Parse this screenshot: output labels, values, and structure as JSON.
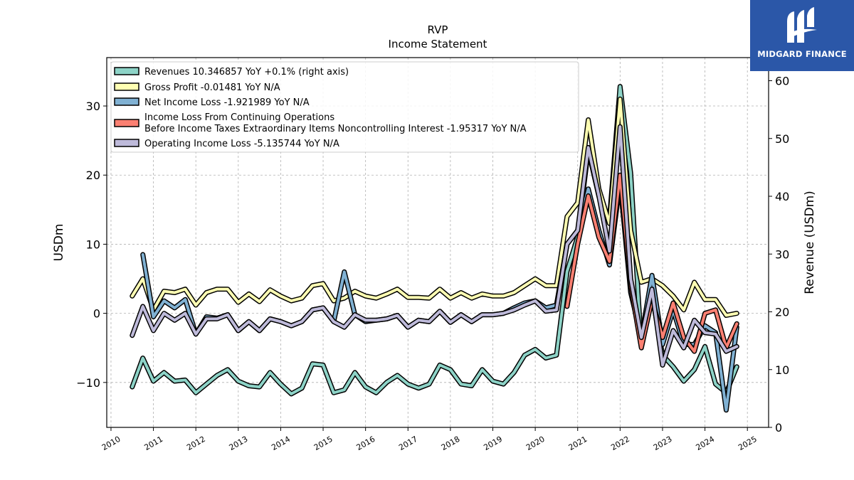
{
  "brand": {
    "name": "MIDGARD FINANCE",
    "color": "#2b57a8",
    "mark_icon": "midgard-logo-icon"
  },
  "chart_data": {
    "type": "line",
    "title": "RVP",
    "subtitle": "Income Statement",
    "ylabel": "USDm",
    "ylabel_right": "Revenue (USDm)",
    "xlim": [
      2009.9,
      2025.5
    ],
    "ylim": [
      -16.5,
      37
    ],
    "ylim_right": [
      0,
      64
    ],
    "x_ticks": [
      2010,
      2011,
      2012,
      2013,
      2014,
      2015,
      2016,
      2017,
      2018,
      2019,
      2020,
      2021,
      2022,
      2023,
      2024,
      2025
    ],
    "x_tick_labels": [
      "2010",
      "2011",
      "2012",
      "2013",
      "2014",
      "2015",
      "2016",
      "2017",
      "2018",
      "2019",
      "2020",
      "2021",
      "2022",
      "2023",
      "2024",
      "2025"
    ],
    "y_ticks": [
      30,
      20,
      10,
      0,
      -10
    ],
    "y_tick_labels": [
      "30",
      "20",
      "10",
      "0",
      "−10"
    ],
    "y_right_ticks": [
      0,
      10,
      20,
      30,
      40,
      50,
      60
    ],
    "y_right_tick_labels": [
      "0",
      "10",
      "20",
      "30",
      "40",
      "50",
      "60"
    ],
    "grid": true,
    "legend_position": "top-left",
    "series": [
      {
        "name": "Revenues  10.346857 YoY +0.1% (right axis)",
        "color": "#8dd3c7",
        "axis": "right",
        "x": [
          2010.5,
          2010.75,
          2011.0,
          2011.25,
          2011.5,
          2011.75,
          2012.0,
          2012.25,
          2012.5,
          2012.75,
          2013.0,
          2013.25,
          2013.5,
          2013.75,
          2014.0,
          2014.25,
          2014.5,
          2014.75,
          2015.0,
          2015.25,
          2015.5,
          2015.75,
          2016.0,
          2016.25,
          2016.5,
          2016.75,
          2017.0,
          2017.25,
          2017.5,
          2017.75,
          2018.0,
          2018.25,
          2018.5,
          2018.75,
          2019.0,
          2019.25,
          2019.5,
          2019.75,
          2020.0,
          2020.25,
          2020.5,
          2020.75,
          2021.0,
          2021.25,
          2021.5,
          2021.75,
          2022.0,
          2022.25,
          2022.5,
          2022.75,
          2023.0,
          2023.25,
          2023.5,
          2023.75,
          2024.0,
          2024.25,
          2024.5,
          2024.75
        ],
        "y": [
          7,
          12,
          8,
          9.5,
          8,
          8.2,
          6,
          7.5,
          9,
          10,
          8,
          7.2,
          7,
          9.5,
          7.5,
          5.8,
          6.8,
          11,
          10.8,
          6,
          6.5,
          9.5,
          7,
          6,
          7.8,
          9,
          7.5,
          6.8,
          7.5,
          10.8,
          10,
          7.5,
          7.2,
          10,
          8,
          7.5,
          9.5,
          12.5,
          13.5,
          12,
          12.5,
          27,
          33,
          48,
          40,
          36,
          59,
          44,
          14,
          23,
          12.5,
          10.5,
          8,
          10,
          14,
          7.5,
          6,
          10.5
        ]
      },
      {
        "name": "Gross Profit  -0.01481 YoY N/A",
        "color": "#ffffb3",
        "axis": "left",
        "x": [
          2010.5,
          2010.75,
          2011.0,
          2011.25,
          2011.5,
          2011.75,
          2012.0,
          2012.25,
          2012.5,
          2012.75,
          2013.0,
          2013.25,
          2013.5,
          2013.75,
          2014.0,
          2014.25,
          2014.5,
          2014.75,
          2015.0,
          2015.25,
          2015.5,
          2015.75,
          2016.0,
          2016.25,
          2016.5,
          2016.75,
          2017.0,
          2017.25,
          2017.5,
          2017.75,
          2018.0,
          2018.25,
          2018.5,
          2018.75,
          2019.0,
          2019.25,
          2019.5,
          2019.75,
          2020.0,
          2020.25,
          2020.5,
          2020.75,
          2021.0,
          2021.25,
          2021.5,
          2021.75,
          2022.0,
          2022.25,
          2022.5,
          2022.75,
          2023.0,
          2023.25,
          2023.5,
          2023.75,
          2024.0,
          2024.25,
          2024.5,
          2024.75
        ],
        "y": [
          2.5,
          5,
          0.5,
          3.2,
          3,
          3.5,
          1.2,
          3,
          3.5,
          3.5,
          1.6,
          2.8,
          1.7,
          3.4,
          2.5,
          1.8,
          2.2,
          4,
          4.3,
          1.8,
          2.2,
          3.2,
          2.5,
          2.2,
          2.8,
          3.5,
          2.3,
          2.3,
          2.2,
          3.5,
          2.2,
          3,
          2.2,
          2.8,
          2.5,
          2.5,
          3,
          4,
          5,
          4,
          4,
          14,
          16,
          28,
          18,
          13,
          31,
          12,
          4.5,
          5,
          4,
          2.5,
          0.5,
          4.5,
          2,
          2,
          -0.3,
          0
        ]
      },
      {
        "name": "Net Income Loss  -1.921989 YoY N/A",
        "color": "#80b1d3",
        "axis": "left",
        "x": [
          2010.75,
          2011.0,
          2011.25,
          2011.5,
          2011.75,
          2012.0,
          2012.25,
          2012.5,
          2012.75,
          2013.0,
          2013.25,
          2013.5,
          2013.75,
          2014.0,
          2014.25,
          2014.5,
          2014.75,
          2015.0,
          2015.25,
          2015.5,
          2015.75,
          2016.0,
          2016.25,
          2016.5,
          2016.75,
          2017.0,
          2017.25,
          2017.5,
          2017.75,
          2018.0,
          2018.25,
          2018.5,
          2018.75,
          2019.0,
          2019.25,
          2019.5,
          2019.75,
          2020.0,
          2020.25,
          2020.5,
          2020.75,
          2021.0,
          2021.25,
          2021.5,
          2021.75,
          2022.0,
          2022.25,
          2022.5,
          2022.75,
          2023.0,
          2023.25,
          2023.5,
          2023.75,
          2024.0,
          2024.25,
          2024.5,
          2024.75
        ],
        "y": [
          8.5,
          -0.5,
          1.8,
          0.8,
          2,
          -3,
          -0.5,
          -0.7,
          -0.2,
          -2.5,
          -1.2,
          -2.5,
          -0.8,
          -1.2,
          -1.8,
          -1.2,
          0.5,
          0.8,
          -1.2,
          6,
          -0.2,
          -1.2,
          -1,
          -0.8,
          -0.3,
          -2,
          -1,
          -1.2,
          0.3,
          -1.3,
          -0.2,
          -1.2,
          -0.2,
          -0.2,
          0,
          0.8,
          1.5,
          1.8,
          0.8,
          1.2,
          10,
          12,
          18,
          12,
          7,
          19,
          3,
          -3.5,
          5.5,
          -4.5,
          0.5,
          -4.5,
          -4.5,
          -1.8,
          -2.8,
          -14,
          -2
        ]
      },
      {
        "name": "Income Loss From Continuing Operations Before Income Taxes Extraordinary Items Noncontrolling Interest  -1.95317 YoY N/A",
        "name_lines": [
          "Income Loss From Continuing Operations",
          "Before Income Taxes Extraordinary Items Noncontrolling Interest  -1.95317 YoY N/A"
        ],
        "color": "#fb8072",
        "axis": "left",
        "x": [
          2020.75,
          2021.0,
          2021.25,
          2021.5,
          2021.75,
          2022.0,
          2022.25,
          2022.5,
          2022.75,
          2023.0,
          2023.25,
          2023.5,
          2023.75,
          2024.0,
          2024.25,
          2024.5,
          2024.75
        ],
        "y": [
          1,
          10,
          17,
          11,
          7.5,
          20,
          4,
          -5,
          2,
          -3.5,
          1.5,
          -3.5,
          -5.5,
          0,
          0.5,
          -5,
          -1.5
        ]
      },
      {
        "name": "Operating Income Loss  -5.135744 YoY N/A",
        "color": "#bebada",
        "axis": "left",
        "x": [
          2010.5,
          2010.75,
          2011.0,
          2011.25,
          2011.5,
          2011.75,
          2012.0,
          2012.25,
          2012.5,
          2012.75,
          2013.0,
          2013.25,
          2013.5,
          2013.75,
          2014.0,
          2014.25,
          2014.5,
          2014.75,
          2015.0,
          2015.25,
          2015.5,
          2015.75,
          2016.0,
          2016.25,
          2016.5,
          2016.75,
          2017.0,
          2017.25,
          2017.5,
          2017.75,
          2018.0,
          2018.25,
          2018.5,
          2018.75,
          2019.0,
          2019.25,
          2019.5,
          2019.75,
          2020.0,
          2020.25,
          2020.5,
          2020.75,
          2021.0,
          2021.25,
          2021.5,
          2021.75,
          2022.0,
          2022.25,
          2022.5,
          2022.75,
          2023.0,
          2023.25,
          2023.5,
          2023.75,
          2024.0,
          2024.25,
          2024.5,
          2024.75
        ],
        "y": [
          -3.2,
          1,
          -2.5,
          0,
          -1,
          0,
          -3,
          -0.8,
          -0.8,
          -0.2,
          -2.5,
          -1.2,
          -2.5,
          -0.8,
          -1.2,
          -1.8,
          -1.2,
          0.5,
          0.8,
          -1.2,
          -2,
          -0.2,
          -1,
          -1,
          -0.8,
          -0.3,
          -2,
          -1,
          -1.2,
          0.3,
          -1.3,
          -0.2,
          -1.2,
          -0.2,
          -0.2,
          0,
          0.5,
          1.2,
          1.8,
          0.3,
          0.5,
          10,
          12,
          24,
          17,
          9,
          27,
          5,
          -3.5,
          3.5,
          -7.5,
          -2.5,
          -5,
          -1,
          -2.8,
          -3,
          -5.5,
          -4.8
        ]
      }
    ]
  }
}
